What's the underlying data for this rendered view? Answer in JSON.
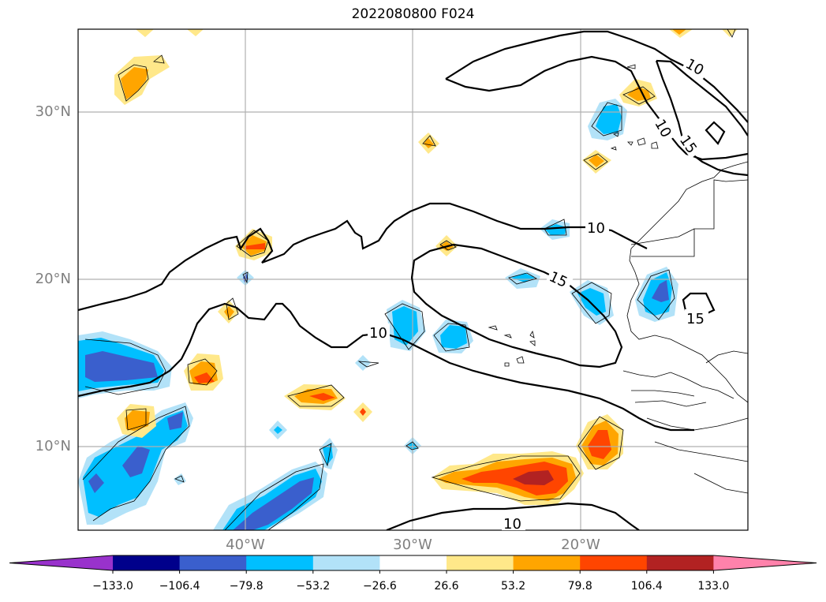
{
  "title": "2022080800 F024",
  "lat_labels": [
    "30°N",
    "20°N",
    "10°N"
  ],
  "lon_labels": [
    "40°W",
    "30°W",
    "20°W"
  ],
  "contour_labels": [
    "10",
    "10",
    "10",
    "15",
    "15",
    "10",
    "15",
    "10"
  ],
  "colorbar": {
    "ticks": [
      "−133.0",
      "−106.4",
      "−79.8",
      "−53.2",
      "−26.6",
      "26.6",
      "53.2",
      "79.8",
      "106.4",
      "133.0"
    ],
    "colors": [
      "#9932cc",
      "#00008b",
      "#3a5fcd",
      "#00bfff",
      "#b2e2f8",
      "#ffffff",
      "#ffe88a",
      "#ffa500",
      "#ff4500",
      "#b22222",
      "#ff82ab"
    ]
  }
}
